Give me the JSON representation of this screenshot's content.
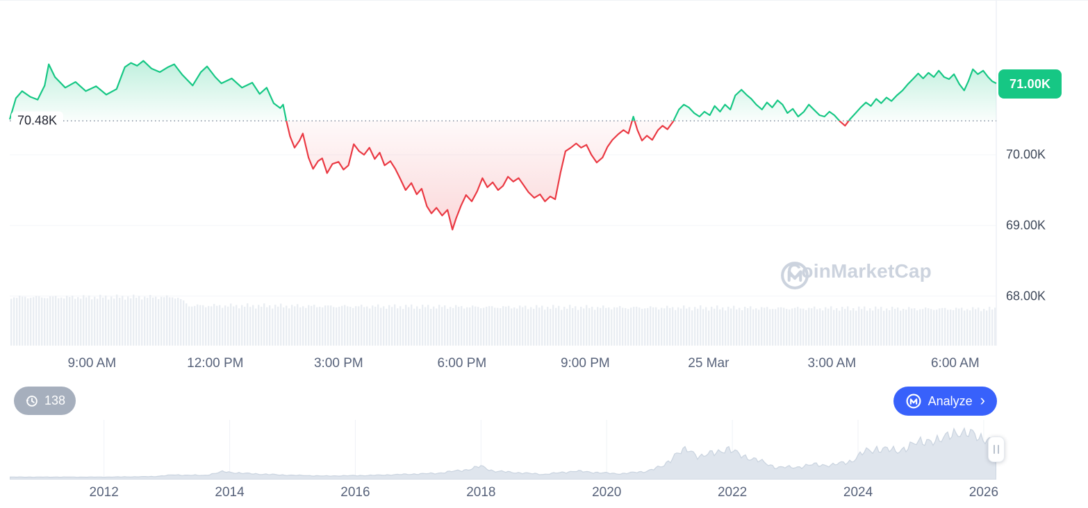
{
  "watermark": {
    "text": "CoinMarketCap"
  },
  "toolbar": {
    "history_count": "138",
    "analyze_label": "Analyze",
    "analyze_color": "#3861fb",
    "history_pill_color": "#a6afbd"
  },
  "chart_data": [
    {
      "id": "price-24h",
      "type": "line",
      "x_unit": "hours-since-07:00",
      "xlim": [
        0,
        24
      ],
      "ylim_k": [
        67.27,
        72.18
      ],
      "baseline_k": 70.48,
      "baseline_label": "70.48K",
      "current_price_label": "71.00K",
      "up_color": "#16c784",
      "down_color": "#ea3943",
      "volume_color": "#e9edf2",
      "x_ticks": [
        {
          "t": 2,
          "label": "9:00 AM"
        },
        {
          "t": 5,
          "label": "12:00 PM"
        },
        {
          "t": 8,
          "label": "3:00 PM"
        },
        {
          "t": 11,
          "label": "6:00 PM"
        },
        {
          "t": 14,
          "label": "9:00 PM"
        },
        {
          "t": 17,
          "label": "25 Mar"
        },
        {
          "t": 20,
          "label": "3:00 AM"
        },
        {
          "t": 23,
          "label": "6:00 AM"
        }
      ],
      "y_ticks": [
        {
          "value": 70,
          "label": "70.00K"
        },
        {
          "value": 69,
          "label": "69.00K"
        },
        {
          "value": 68,
          "label": "68.00K"
        }
      ],
      "series": [
        [
          0,
          70.5
        ],
        [
          0.15,
          70.8
        ],
        [
          0.3,
          70.9
        ],
        [
          0.5,
          70.82
        ],
        [
          0.68,
          70.78
        ],
        [
          0.85,
          70.98
        ],
        [
          0.95,
          71.28
        ],
        [
          1.1,
          71.1
        ],
        [
          1.35,
          70.95
        ],
        [
          1.6,
          71.03
        ],
        [
          1.85,
          70.9
        ],
        [
          2.1,
          70.97
        ],
        [
          2.35,
          70.85
        ],
        [
          2.6,
          70.93
        ],
        [
          2.8,
          71.24
        ],
        [
          2.95,
          71.3
        ],
        [
          3.1,
          71.26
        ],
        [
          3.25,
          71.33
        ],
        [
          3.45,
          71.22
        ],
        [
          3.65,
          71.17
        ],
        [
          3.85,
          71.24
        ],
        [
          4,
          71.28
        ],
        [
          4.2,
          71.13
        ],
        [
          4.45,
          70.98
        ],
        [
          4.65,
          71.17
        ],
        [
          4.8,
          71.25
        ],
        [
          5,
          71.1
        ],
        [
          5.15,
          71.01
        ],
        [
          5.4,
          71.08
        ],
        [
          5.65,
          70.95
        ],
        [
          5.9,
          71.02
        ],
        [
          6.08,
          70.86
        ],
        [
          6.25,
          70.95
        ],
        [
          6.42,
          70.73
        ],
        [
          6.58,
          70.66
        ],
        [
          6.65,
          70.71
        ],
        [
          6.73,
          70.48
        ],
        [
          6.82,
          70.26
        ],
        [
          6.93,
          70.1
        ],
        [
          7.05,
          70.2
        ],
        [
          7.13,
          70.3
        ],
        [
          7.27,
          69.96
        ],
        [
          7.38,
          69.8
        ],
        [
          7.5,
          69.91
        ],
        [
          7.6,
          69.95
        ],
        [
          7.72,
          69.74
        ],
        [
          7.85,
          69.87
        ],
        [
          8,
          69.9
        ],
        [
          8.12,
          69.79
        ],
        [
          8.24,
          69.85
        ],
        [
          8.37,
          70.15
        ],
        [
          8.5,
          70.05
        ],
        [
          8.62,
          70
        ],
        [
          8.75,
          70.1
        ],
        [
          8.88,
          69.94
        ],
        [
          9,
          70.03
        ],
        [
          9.12,
          69.85
        ],
        [
          9.26,
          69.91
        ],
        [
          9.38,
          69.8
        ],
        [
          9.5,
          69.66
        ],
        [
          9.63,
          69.5
        ],
        [
          9.77,
          69.6
        ],
        [
          9.9,
          69.44
        ],
        [
          10.02,
          69.52
        ],
        [
          10.15,
          69.27
        ],
        [
          10.26,
          69.17
        ],
        [
          10.38,
          69.25
        ],
        [
          10.52,
          69.14
        ],
        [
          10.65,
          69.22
        ],
        [
          10.77,
          68.94
        ],
        [
          10.86,
          69.1
        ],
        [
          10.98,
          69.28
        ],
        [
          11.1,
          69.43
        ],
        [
          11.24,
          69.34
        ],
        [
          11.37,
          69.48
        ],
        [
          11.5,
          69.67
        ],
        [
          11.62,
          69.54
        ],
        [
          11.75,
          69.61
        ],
        [
          11.88,
          69.5
        ],
        [
          12,
          69.56
        ],
        [
          12.12,
          69.69
        ],
        [
          12.25,
          69.62
        ],
        [
          12.38,
          69.67
        ],
        [
          12.5,
          69.57
        ],
        [
          12.62,
          69.47
        ],
        [
          12.76,
          69.39
        ],
        [
          12.9,
          69.44
        ],
        [
          13.02,
          69.34
        ],
        [
          13.15,
          69.41
        ],
        [
          13.27,
          69.37
        ],
        [
          13.4,
          69.75
        ],
        [
          13.52,
          70.05
        ],
        [
          13.65,
          70.1
        ],
        [
          13.78,
          70.16
        ],
        [
          13.9,
          70.1
        ],
        [
          14.03,
          70.14
        ],
        [
          14.15,
          70
        ],
        [
          14.28,
          69.89
        ],
        [
          14.42,
          69.96
        ],
        [
          14.54,
          70.11
        ],
        [
          14.66,
          70.21
        ],
        [
          14.8,
          70.29
        ],
        [
          14.93,
          70.35
        ],
        [
          15.05,
          70.3
        ],
        [
          15.17,
          70.54
        ],
        [
          15.27,
          70.35
        ],
        [
          15.38,
          70.2
        ],
        [
          15.5,
          70.27
        ],
        [
          15.63,
          70.21
        ],
        [
          15.77,
          70.35
        ],
        [
          15.88,
          70.41
        ],
        [
          16,
          70.36
        ],
        [
          16.14,
          70.47
        ],
        [
          16.28,
          70.64
        ],
        [
          16.4,
          70.71
        ],
        [
          16.52,
          70.67
        ],
        [
          16.65,
          70.59
        ],
        [
          16.78,
          70.54
        ],
        [
          16.9,
          70.61
        ],
        [
          17.03,
          70.56
        ],
        [
          17.15,
          70.69
        ],
        [
          17.28,
          70.61
        ],
        [
          17.4,
          70.71
        ],
        [
          17.53,
          70.64
        ],
        [
          17.65,
          70.84
        ],
        [
          17.8,
          70.92
        ],
        [
          17.92,
          70.85
        ],
        [
          18.04,
          70.79
        ],
        [
          18.16,
          70.71
        ],
        [
          18.3,
          70.64
        ],
        [
          18.42,
          70.74
        ],
        [
          18.55,
          70.67
        ],
        [
          18.68,
          70.77
        ],
        [
          18.8,
          70.71
        ],
        [
          18.92,
          70.59
        ],
        [
          19.05,
          70.65
        ],
        [
          19.18,
          70.54
        ],
        [
          19.32,
          70.61
        ],
        [
          19.44,
          70.71
        ],
        [
          19.56,
          70.64
        ],
        [
          19.7,
          70.56
        ],
        [
          19.82,
          70.54
        ],
        [
          19.94,
          70.61
        ],
        [
          20.06,
          70.56
        ],
        [
          20.2,
          70.47
        ],
        [
          20.32,
          70.41
        ],
        [
          20.45,
          70.51
        ],
        [
          20.58,
          70.59
        ],
        [
          20.7,
          70.67
        ],
        [
          20.83,
          70.74
        ],
        [
          20.95,
          70.69
        ],
        [
          21.08,
          70.79
        ],
        [
          21.2,
          70.73
        ],
        [
          21.33,
          70.81
        ],
        [
          21.45,
          70.76
        ],
        [
          21.58,
          70.84
        ],
        [
          21.72,
          70.91
        ],
        [
          21.85,
          71
        ],
        [
          21.97,
          71.07
        ],
        [
          22.1,
          71.15
        ],
        [
          22.22,
          71.08
        ],
        [
          22.35,
          71.16
        ],
        [
          22.48,
          71.1
        ],
        [
          22.6,
          71.19
        ],
        [
          22.73,
          71.1
        ],
        [
          22.85,
          71.07
        ],
        [
          22.97,
          71.14
        ],
        [
          23.1,
          71
        ],
        [
          23.22,
          70.91
        ],
        [
          23.32,
          71.04
        ],
        [
          23.43,
          71.21
        ],
        [
          23.55,
          71.14
        ],
        [
          23.68,
          71.19
        ],
        [
          23.8,
          71.1
        ],
        [
          23.9,
          71.04
        ],
        [
          24,
          71.01
        ]
      ],
      "volume_profile": [
        [
          0,
          0.97
        ],
        [
          4.05,
          0.97
        ],
        [
          4.35,
          0.8
        ],
        [
          12,
          0.77
        ],
        [
          24,
          0.73
        ]
      ]
    },
    {
      "id": "history-brush",
      "type": "area",
      "xlim": [
        2010.5,
        2026.2
      ],
      "x_ticks": [
        2012,
        2014,
        2016,
        2018,
        2020,
        2022,
        2024,
        2026
      ],
      "fill_color": "#dfe5ed",
      "line_color": "#c9d3df",
      "series": [
        [
          2010.5,
          0.02
        ],
        [
          2012,
          0.02
        ],
        [
          2012.8,
          0.03
        ],
        [
          2013.1,
          0.06
        ],
        [
          2013.6,
          0.05
        ],
        [
          2013.9,
          0.12
        ],
        [
          2014.2,
          0.09
        ],
        [
          2014.8,
          0.06
        ],
        [
          2015.5,
          0.04
        ],
        [
          2016.2,
          0.05
        ],
        [
          2016.8,
          0.07
        ],
        [
          2017.3,
          0.09
        ],
        [
          2017.8,
          0.16
        ],
        [
          2018,
          0.22
        ],
        [
          2018.2,
          0.13
        ],
        [
          2018.6,
          0.1
        ],
        [
          2019,
          0.07
        ],
        [
          2019.5,
          0.13
        ],
        [
          2019.9,
          0.1
        ],
        [
          2020.2,
          0.08
        ],
        [
          2020.6,
          0.12
        ],
        [
          2020.9,
          0.22
        ],
        [
          2021.1,
          0.45
        ],
        [
          2021.3,
          0.52
        ],
        [
          2021.5,
          0.4
        ],
        [
          2021.7,
          0.46
        ],
        [
          2021.9,
          0.55
        ],
        [
          2022.1,
          0.44
        ],
        [
          2022.4,
          0.33
        ],
        [
          2022.7,
          0.2
        ],
        [
          2023,
          0.2
        ],
        [
          2023.3,
          0.25
        ],
        [
          2023.6,
          0.24
        ],
        [
          2023.9,
          0.32
        ],
        [
          2024.1,
          0.48
        ],
        [
          2024.3,
          0.55
        ],
        [
          2024.6,
          0.5
        ],
        [
          2024.9,
          0.62
        ],
        [
          2025.1,
          0.72
        ],
        [
          2025.3,
          0.66
        ],
        [
          2025.5,
          0.88
        ],
        [
          2025.7,
          0.78
        ],
        [
          2025.85,
          0.85
        ],
        [
          2026,
          0.72
        ],
        [
          2026.2,
          0.62
        ]
      ]
    }
  ]
}
